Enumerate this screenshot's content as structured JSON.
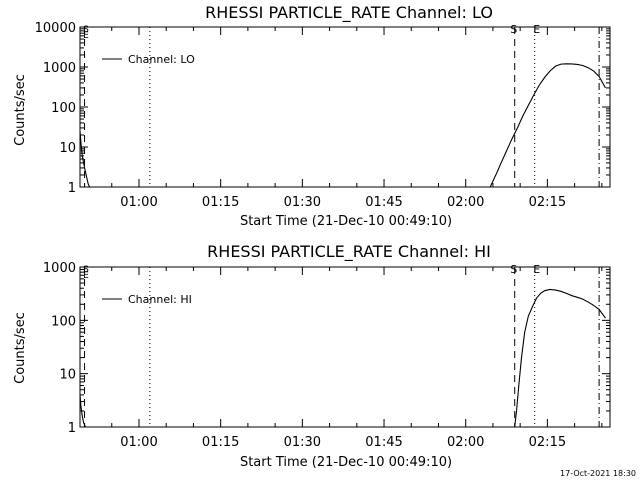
{
  "footer_date": "17-Oct-2021 18:30",
  "chart_data": [
    {
      "type": "line",
      "title": "RHESSI PARTICLE_RATE Channel: LO",
      "xlabel": "Start Time (21-Dec-10 00:49:10)",
      "ylabel": "Counts/sec",
      "yscale": "log",
      "ylim": [
        1,
        10000
      ],
      "xlim": [
        "00:49:10",
        "02:26:30"
      ],
      "x_ticks": [
        "01:00",
        "01:15",
        "01:30",
        "01:45",
        "02:00",
        "02:15"
      ],
      "y_ticks": [
        "1",
        "10",
        "100",
        "1000",
        "10000"
      ],
      "legend": {
        "position": "top-left",
        "entries": [
          "Channel: LO"
        ]
      },
      "series": [
        {
          "name": "Channel: LO",
          "x": [
            "00:49:10",
            "00:49:20",
            "00:49:35",
            "00:50:00",
            "00:50:20",
            "00:50:40",
            "00:50:55",
            "02:04:30",
            "02:05:00",
            "02:05:40",
            "02:06:30",
            "02:07:30",
            "02:08:30",
            "02:09:30",
            "02:10:30",
            "02:11:30",
            "02:12:30",
            "02:13:30",
            "02:14:30",
            "02:15:30",
            "02:16:30",
            "02:17:30",
            "02:18:30",
            "02:19:30",
            "02:20:30",
            "02:21:30",
            "02:22:30",
            "02:23:30",
            "02:24:30",
            "02:25:40"
          ],
          "y": [
            25,
            13,
            6,
            3,
            1.9,
            1.2,
            1,
            1,
            1.4,
            2.2,
            4,
            8,
            16,
            30,
            60,
            110,
            200,
            350,
            550,
            800,
            1050,
            1180,
            1200,
            1190,
            1160,
            1090,
            960,
            790,
            580,
            300
          ]
        }
      ],
      "markers": [
        {
          "label": "S",
          "x": "02:09:00",
          "style": "dashed"
        },
        {
          "label": "E",
          "x": "02:12:40",
          "style": "dotted"
        },
        {
          "label": "",
          "x": "01:02:00",
          "style": "dotted"
        },
        {
          "label": "",
          "x": "00:50:00",
          "style": "dashed"
        },
        {
          "label": "",
          "x": "02:24:30",
          "style": "dashdot"
        }
      ],
      "corner_marks": [
        "S",
        "E"
      ]
    },
    {
      "type": "line",
      "title": "RHESSI PARTICLE_RATE Channel: HI",
      "xlabel": "Start Time (21-Dec-10 00:49:10)",
      "ylabel": "Counts/sec",
      "yscale": "log",
      "ylim": [
        1,
        1000
      ],
      "xlim": [
        "00:49:10",
        "02:26:30"
      ],
      "x_ticks": [
        "01:00",
        "01:15",
        "01:30",
        "01:45",
        "02:00",
        "02:15"
      ],
      "y_ticks": [
        "1",
        "10",
        "100",
        "1000"
      ],
      "legend": {
        "position": "top-left",
        "entries": [
          "Channel: HI"
        ]
      },
      "series": [
        {
          "name": "Channel: HI",
          "x": [
            "00:49:10",
            "00:49:20",
            "00:49:35",
            "00:49:50",
            "00:50:10",
            "02:09:00",
            "02:09:20",
            "02:09:45",
            "02:10:15",
            "02:10:50",
            "02:11:30",
            "02:12:15",
            "02:13:00",
            "02:13:45",
            "02:14:30",
            "02:15:30",
            "02:16:30",
            "02:17:30",
            "02:18:30",
            "02:19:30",
            "02:20:30",
            "02:21:30",
            "02:22:30",
            "02:23:30",
            "02:24:30",
            "02:25:40"
          ],
          "y": [
            4,
            2.5,
            1.6,
            1.2,
            1,
            1,
            2,
            6,
            20,
            60,
            120,
            180,
            260,
            320,
            360,
            380,
            370,
            350,
            320,
            290,
            270,
            250,
            220,
            190,
            160,
            110
          ]
        }
      ],
      "markers": [
        {
          "label": "S",
          "x": "02:09:00",
          "style": "dashed"
        },
        {
          "label": "E",
          "x": "02:12:40",
          "style": "dotted"
        },
        {
          "label": "",
          "x": "01:02:00",
          "style": "dotted"
        },
        {
          "label": "",
          "x": "00:50:00",
          "style": "dashed"
        },
        {
          "label": "",
          "x": "02:24:30",
          "style": "dashdot"
        }
      ],
      "corner_marks": [
        "S",
        "E"
      ]
    }
  ]
}
